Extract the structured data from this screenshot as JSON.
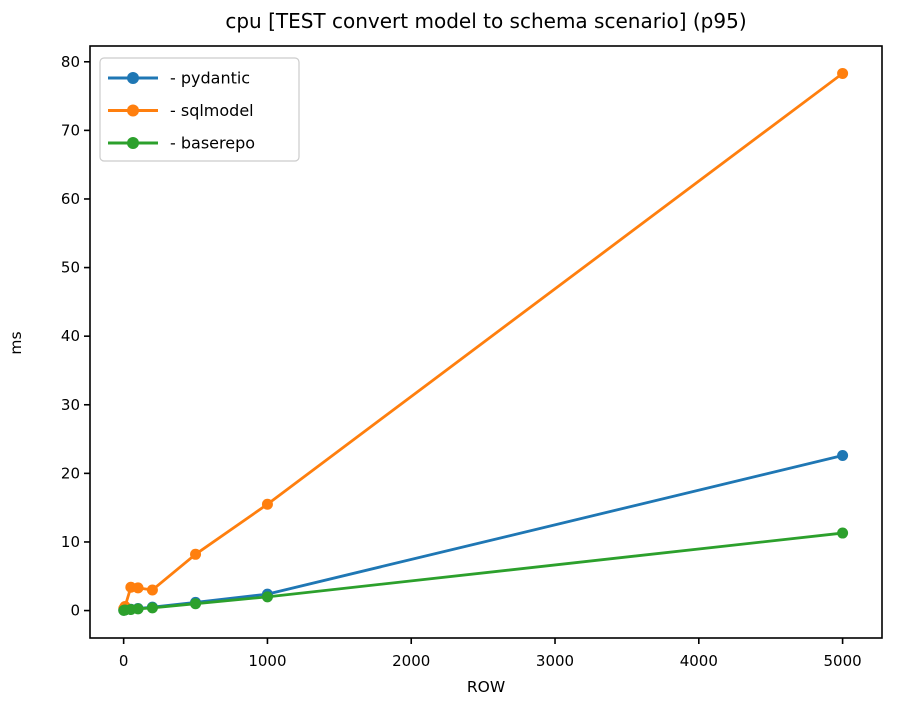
{
  "chart_data": {
    "type": "line",
    "title": "cpu [TEST convert model to schema scenario] (p95)",
    "xlabel": "ROW",
    "ylabel": "ms",
    "x": [
      1,
      10,
      50,
      100,
      200,
      500,
      1000,
      5000
    ],
    "series": [
      {
        "name": "- pydantic",
        "color": "#1f77b4",
        "values": [
          0.05,
          0.1,
          0.2,
          0.3,
          0.5,
          1.2,
          2.4,
          22.6
        ]
      },
      {
        "name": "- sqlmodel",
        "color": "#ff7f0e",
        "values": [
          0.3,
          0.6,
          3.4,
          3.3,
          3.0,
          8.2,
          15.5,
          78.3
        ]
      },
      {
        "name": "- baserepo",
        "color": "#2ca02c",
        "values": [
          0.03,
          0.08,
          0.15,
          0.25,
          0.4,
          1.0,
          2.0,
          11.3
        ]
      }
    ],
    "xticks": [
      0,
      1000,
      2000,
      3000,
      4000,
      5000
    ],
    "yticks": [
      0,
      10,
      20,
      30,
      40,
      50,
      60,
      70,
      80
    ],
    "xlim": [
      -234,
      5274
    ],
    "ylim": [
      -4.0,
      82.3
    ],
    "grid": false,
    "legend_position": "upper-left",
    "marker": "circle",
    "background_color": "#ffffff",
    "axis_color": "#000000"
  }
}
